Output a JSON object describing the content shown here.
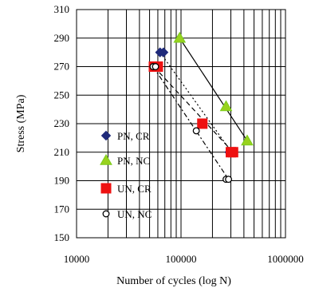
{
  "chart_data": {
    "type": "scatter",
    "title": "",
    "xlabel": "Number of cycles (log N)",
    "ylabel": "Stress (MPa)",
    "xscale": "log",
    "xlim": [
      10000,
      1000000
    ],
    "ylim": [
      150,
      310
    ],
    "x_ticks": [
      "10000",
      "100000",
      "1000000"
    ],
    "y_ticks": [
      "150",
      "170",
      "190",
      "210",
      "230",
      "250",
      "270",
      "290",
      "310"
    ],
    "grid": true,
    "legend_position": "left, inside plot",
    "series": [
      {
        "name": "PN, CR",
        "marker": "diamond",
        "color": "#1f2a7a",
        "fill": "#1f2a7a",
        "line_style": "dotted",
        "points": [
          [
            63000,
            280
          ],
          [
            68000,
            280
          ],
          [
            290000,
            210
          ],
          [
            305000,
            210
          ]
        ],
        "fit": [
          [
            63000,
            280
          ],
          [
            305000,
            210
          ]
        ]
      },
      {
        "name": "PN, NC",
        "marker": "triangle",
        "color": "#7acc1a",
        "fill": "#99d21e",
        "line_style": "solid",
        "points": [
          [
            97000,
            290
          ],
          [
            270000,
            242
          ],
          [
            430000,
            218
          ]
        ],
        "fit": [
          [
            97000,
            290
          ],
          [
            430000,
            218
          ]
        ]
      },
      {
        "name": "UN, CR",
        "marker": "square",
        "color": "#ee1111",
        "fill": "#ee1111",
        "line_style": "dashed",
        "points": [
          [
            55000,
            270
          ],
          [
            60000,
            270
          ],
          [
            160000,
            230
          ],
          [
            300000,
            210
          ],
          [
            315000,
            210
          ]
        ],
        "fit": [
          [
            55000,
            270
          ],
          [
            315000,
            210
          ]
        ]
      },
      {
        "name": "UN, NC",
        "marker": "circle-open",
        "color": "#000000",
        "fill": "#ffffff",
        "line_style": "dash-dot",
        "points": [
          [
            54000,
            270
          ],
          [
            57000,
            270
          ],
          [
            140000,
            225
          ],
          [
            270000,
            191
          ],
          [
            285000,
            191
          ]
        ],
        "fit": [
          [
            54000,
            270
          ],
          [
            285000,
            191
          ]
        ]
      }
    ]
  }
}
